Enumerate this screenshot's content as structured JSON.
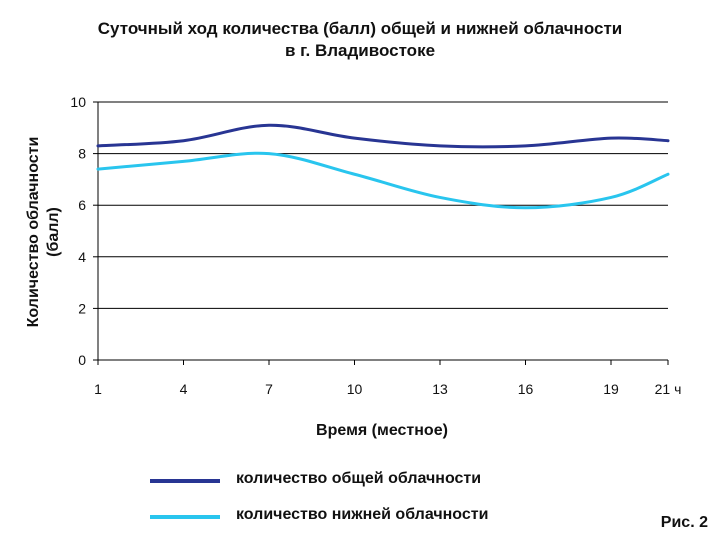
{
  "chart_data": {
    "type": "line",
    "title": [
      "Суточный ход количества (балл) общей и нижней облачности",
      "в г. Владивостоке"
    ],
    "xlabel": "Время (местное)",
    "ylabel": [
      "Количество облачности",
      "(балл)"
    ],
    "x": [
      1,
      4,
      7,
      10,
      13,
      16,
      19,
      21
    ],
    "x_tick_labels": [
      "1",
      "4",
      "7",
      "10",
      "13",
      "16",
      "19",
      "21 ч"
    ],
    "ylim": [
      0,
      10
    ],
    "y_ticks": [
      0,
      2,
      4,
      6,
      8,
      10
    ],
    "grid": "horizontal",
    "legend_position": "bottom",
    "series": [
      {
        "name": "количество общей облачности",
        "color": "#283593",
        "values": [
          8.3,
          8.5,
          9.1,
          8.6,
          8.3,
          8.3,
          8.6,
          8.5
        ]
      },
      {
        "name": "количество нижней облачности",
        "color": "#29c5ee",
        "values": [
          7.4,
          7.7,
          8.0,
          7.2,
          6.3,
          5.9,
          6.3,
          7.2
        ]
      }
    ]
  },
  "figure_label": "Рис. 2"
}
